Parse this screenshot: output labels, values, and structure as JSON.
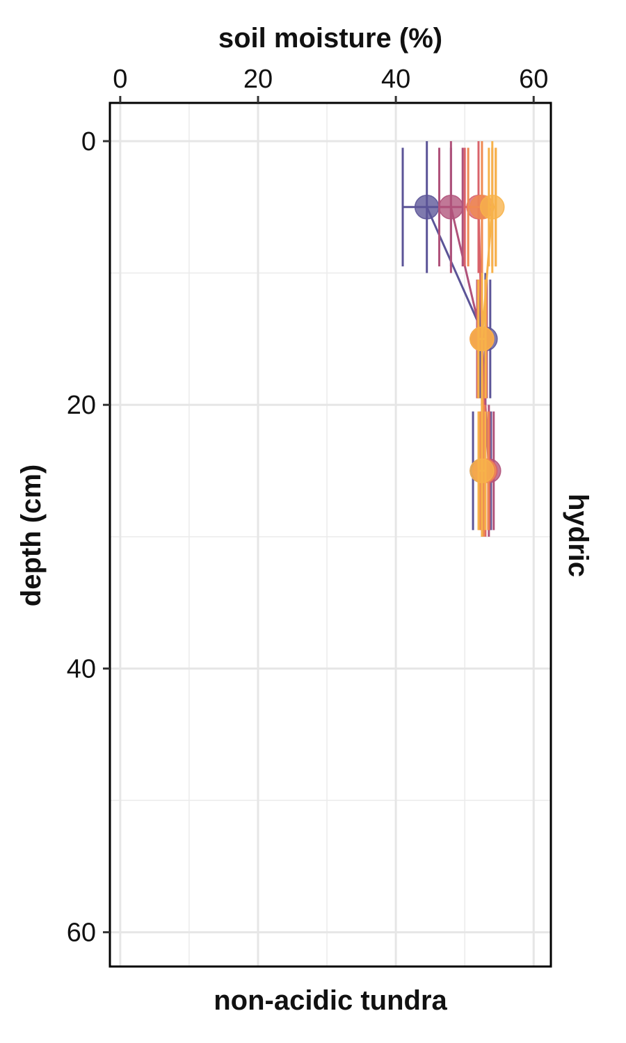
{
  "chart_data": {
    "type": "scatter",
    "xlabel": "soil moisture (%)",
    "ylabel": "depth (cm)",
    "facet_label": "hydric",
    "caption": "non-acidic tundra",
    "xlim": [
      -1.5,
      62.5
    ],
    "ylim": [
      -2.9,
      62.6
    ],
    "x_ticks": [
      0,
      20,
      40,
      60
    ],
    "y_ticks": [
      0,
      20,
      40,
      60
    ],
    "y_reversed": true,
    "x_axis_position": "top",
    "grid": true,
    "legend": "none",
    "series": [
      {
        "color": "#5b5497",
        "points": [
          {
            "depth": 5,
            "moisture": 44.5,
            "err": 3.5
          },
          {
            "depth": 15,
            "moisture": 53.0,
            "err": 0.7
          },
          {
            "depth": 25,
            "moisture": 52.5,
            "err": 1.3
          }
        ]
      },
      {
        "color": "#b0527a",
        "points": [
          {
            "depth": 5,
            "moisture": 48.0,
            "err": 1.7
          },
          {
            "depth": 15,
            "moisture": 52.5,
            "err": 0.7
          },
          {
            "depth": 25,
            "moisture": 53.5,
            "err": 0.7
          }
        ]
      },
      {
        "color": "#d9636a",
        "points": [
          {
            "depth": 5,
            "moisture": 52.0,
            "err": 2.0
          },
          {
            "depth": 15,
            "moisture": 52.5,
            "err": 0.5
          },
          {
            "depth": 25,
            "moisture": 53.0,
            "err": 0.6
          }
        ]
      },
      {
        "color": "#ef8a52",
        "points": [
          {
            "depth": 5,
            "moisture": 52.5,
            "err": 2.0
          },
          {
            "depth": 15,
            "moisture": 52.5,
            "err": 0.6
          },
          {
            "depth": 25,
            "moisture": 52.8,
            "err": 0.6
          }
        ]
      },
      {
        "color": "#f7b24a",
        "points": [
          {
            "depth": 5,
            "moisture": 54.0,
            "err": 0.5
          },
          {
            "depth": 15,
            "moisture": 52.5,
            "err": 0.5
          },
          {
            "depth": 25,
            "moisture": 52.5,
            "err": 0.5
          }
        ]
      }
    ]
  }
}
